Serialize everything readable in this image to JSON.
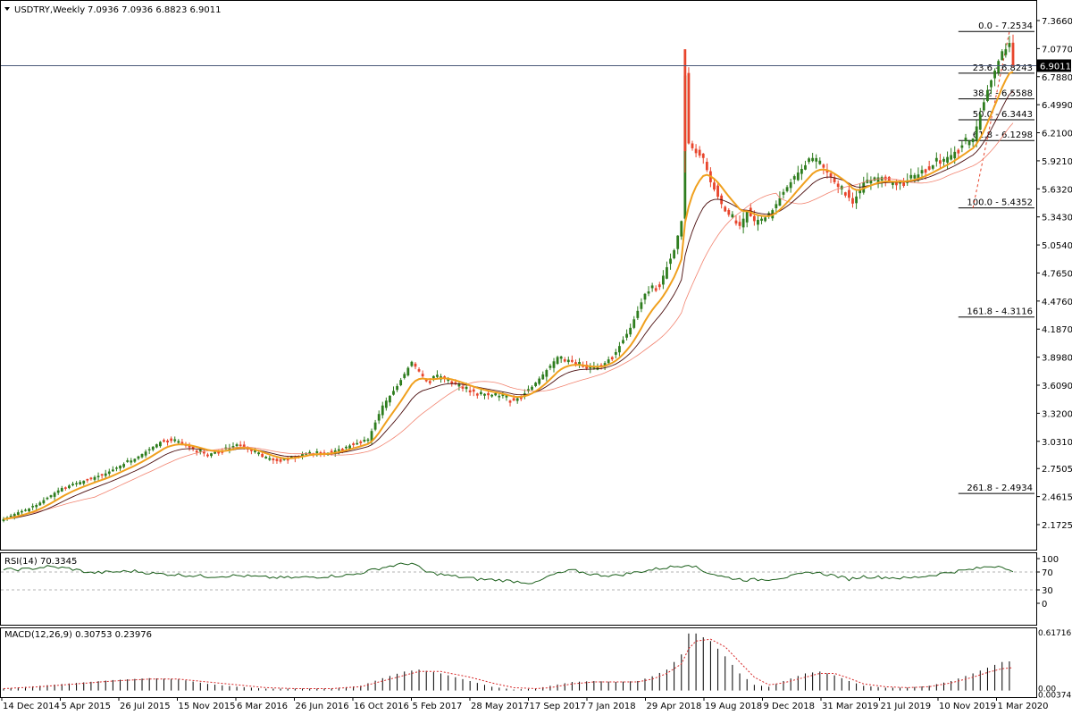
{
  "header": {
    "symbol_tf": "USDTRY,Weekly",
    "ohlc": "7.0936 7.0936 6.8823 6.9011"
  },
  "colors": {
    "bull": "#2e7d1e",
    "bear": "#e8452c",
    "ema_fast": "#f0a01e",
    "ma_dark": "#4a0d0d",
    "ma_light": "#f28470",
    "rsi": "#1a5e1a",
    "macd_signal": "#d62828",
    "grid_dash": "#9a9a9a",
    "fib_line": "#000000",
    "price_line": "#4a5a7a",
    "price_tag_bg": "#000000"
  },
  "chart_data": [
    {
      "type": "candlestick",
      "panel": "main",
      "timeframe": "Weekly",
      "x_labels": [
        "14 Dec 2014",
        "5 Apr 2015",
        "26 Jul 2015",
        "15 Nov 2015",
        "6 Mar 2016",
        "26 Jun 2016",
        "16 Oct 2016",
        "5 Feb 2017",
        "28 May 2017",
        "17 Sep 2017",
        "7 Jan 2018",
        "29 Apr 2018",
        "19 Aug 2018",
        "9 Dec 2018",
        "31 Mar 2019",
        "21 Jul 2019",
        "10 Nov 2019",
        "1 Mar 2020"
      ],
      "y_ticks": [
        "7.3660",
        "7.0770",
        "6.7880",
        "6.4990",
        "6.2100",
        "5.9210",
        "5.6320",
        "5.3430",
        "5.0540",
        "4.7650",
        "4.4760",
        "4.1870",
        "3.8980",
        "3.6090",
        "3.3200",
        "3.0310",
        "2.7505",
        "2.4615",
        "2.1725"
      ],
      "ylim": [
        2.1725,
        7.366
      ],
      "current_price": "6.9011",
      "close_path": [
        [
          0,
          2.23
        ],
        [
          4,
          2.3
        ],
        [
          8,
          2.35
        ],
        [
          12,
          2.45
        ],
        [
          16,
          2.55
        ],
        [
          20,
          2.6
        ],
        [
          24,
          2.65
        ],
        [
          28,
          2.7
        ],
        [
          32,
          2.78
        ],
        [
          36,
          2.85
        ],
        [
          40,
          2.95
        ],
        [
          44,
          3.05
        ],
        [
          48,
          3.02
        ],
        [
          52,
          2.95
        ],
        [
          56,
          2.9
        ],
        [
          60,
          2.93
        ],
        [
          64,
          3.0
        ],
        [
          68,
          2.93
        ],
        [
          72,
          2.85
        ],
        [
          76,
          2.82
        ],
        [
          80,
          2.88
        ],
        [
          84,
          2.92
        ],
        [
          88,
          2.9
        ],
        [
          92,
          2.95
        ],
        [
          96,
          3.0
        ],
        [
          100,
          3.05
        ],
        [
          104,
          3.4
        ],
        [
          108,
          3.6
        ],
        [
          112,
          3.85
        ],
        [
          116,
          3.65
        ],
        [
          120,
          3.7
        ],
        [
          124,
          3.62
        ],
        [
          128,
          3.55
        ],
        [
          132,
          3.52
        ],
        [
          136,
          3.5
        ],
        [
          140,
          3.45
        ],
        [
          144,
          3.55
        ],
        [
          148,
          3.72
        ],
        [
          152,
          3.9
        ],
        [
          156,
          3.85
        ],
        [
          160,
          3.78
        ],
        [
          164,
          3.8
        ],
        [
          168,
          3.95
        ],
        [
          172,
          4.2
        ],
        [
          176,
          4.55
        ],
        [
          180,
          4.65
        ],
        [
          184,
          5.0
        ],
        [
          186,
          5.3
        ],
        [
          187,
          6.8
        ],
        [
          188,
          6.1
        ],
        [
          190,
          6.0
        ],
        [
          192,
          5.95
        ],
        [
          194,
          5.7
        ],
        [
          196,
          5.55
        ],
        [
          198,
          5.4
        ],
        [
          200,
          5.33
        ],
        [
          202,
          5.25
        ],
        [
          204,
          5.4
        ],
        [
          206,
          5.3
        ],
        [
          210,
          5.35
        ],
        [
          214,
          5.6
        ],
        [
          218,
          5.8
        ],
        [
          222,
          5.95
        ],
        [
          225,
          5.85
        ],
        [
          228,
          5.7
        ],
        [
          231,
          5.6
        ],
        [
          233,
          5.48
        ],
        [
          236,
          5.7
        ],
        [
          240,
          5.75
        ],
        [
          244,
          5.7
        ],
        [
          248,
          5.72
        ],
        [
          252,
          5.8
        ],
        [
          256,
          5.9
        ],
        [
          260,
          5.98
        ],
        [
          263,
          6.08
        ],
        [
          266,
          6.15
        ],
        [
          268,
          6.4
        ],
        [
          270,
          6.65
        ],
        [
          272,
          6.85
        ],
        [
          274,
          7.05
        ],
        [
          276,
          7.09
        ],
        [
          277,
          6.9
        ]
      ]
    },
    {
      "type": "line",
      "panel": "rsi",
      "title": "RSI(14) 70.3345",
      "y_ticks": [
        "100",
        "70",
        "30",
        "0"
      ],
      "ylim": [
        0,
        100
      ],
      "levels": [
        70,
        30
      ],
      "path": [
        [
          0,
          75
        ],
        [
          6,
          76
        ],
        [
          12,
          82
        ],
        [
          18,
          78
        ],
        [
          24,
          68
        ],
        [
          30,
          70
        ],
        [
          36,
          72
        ],
        [
          42,
          66
        ],
        [
          48,
          64
        ],
        [
          56,
          60
        ],
        [
          64,
          62
        ],
        [
          72,
          58
        ],
        [
          80,
          57
        ],
        [
          88,
          60
        ],
        [
          96,
          64
        ],
        [
          104,
          80
        ],
        [
          108,
          86
        ],
        [
          112,
          90
        ],
        [
          116,
          70
        ],
        [
          122,
          62
        ],
        [
          130,
          54
        ],
        [
          136,
          52
        ],
        [
          142,
          48
        ],
        [
          146,
          45
        ],
        [
          150,
          62
        ],
        [
          156,
          74
        ],
        [
          162,
          64
        ],
        [
          168,
          62
        ],
        [
          174,
          70
        ],
        [
          180,
          78
        ],
        [
          186,
          84
        ],
        [
          188,
          88
        ],
        [
          192,
          72
        ],
        [
          198,
          58
        ],
        [
          204,
          52
        ],
        [
          210,
          54
        ],
        [
          216,
          60
        ],
        [
          222,
          70
        ],
        [
          228,
          62
        ],
        [
          232,
          54
        ],
        [
          236,
          60
        ],
        [
          242,
          58
        ],
        [
          248,
          56
        ],
        [
          254,
          62
        ],
        [
          260,
          70
        ],
        [
          266,
          76
        ],
        [
          270,
          82
        ],
        [
          274,
          84
        ],
        [
          277,
          70.33
        ]
      ]
    },
    {
      "type": "bar+line",
      "panel": "macd",
      "title": "MACD(12,26,9) 0.30753 0.23976",
      "y_ticks": [
        "0.61716",
        "0.00",
        "0.00374"
      ],
      "ylim": [
        -0.00374,
        0.61716
      ],
      "histogram_path": [
        [
          0,
          0.02
        ],
        [
          10,
          0.05
        ],
        [
          20,
          0.08
        ],
        [
          30,
          0.11
        ],
        [
          40,
          0.13
        ],
        [
          48,
          0.12
        ],
        [
          56,
          0.07
        ],
        [
          64,
          0.04
        ],
        [
          72,
          0.02
        ],
        [
          80,
          0.02
        ],
        [
          90,
          0.02
        ],
        [
          98,
          0.05
        ],
        [
          104,
          0.13
        ],
        [
          110,
          0.2
        ],
        [
          114,
          0.22
        ],
        [
          120,
          0.18
        ],
        [
          128,
          0.1
        ],
        [
          134,
          0.04
        ],
        [
          140,
          0.01
        ],
        [
          146,
          0.02
        ],
        [
          150,
          0.05
        ],
        [
          156,
          0.09
        ],
        [
          162,
          0.1
        ],
        [
          168,
          0.09
        ],
        [
          174,
          0.1
        ],
        [
          178,
          0.15
        ],
        [
          182,
          0.22
        ],
        [
          186,
          0.38
        ],
        [
          188,
          0.6
        ],
        [
          190,
          0.6
        ],
        [
          194,
          0.52
        ],
        [
          198,
          0.36
        ],
        [
          202,
          0.18
        ],
        [
          206,
          0.06
        ],
        [
          210,
          0.04
        ],
        [
          214,
          0.1
        ],
        [
          220,
          0.18
        ],
        [
          224,
          0.2
        ],
        [
          228,
          0.16
        ],
        [
          232,
          0.1
        ],
        [
          236,
          0.05
        ],
        [
          242,
          0.03
        ],
        [
          248,
          0.03
        ],
        [
          254,
          0.05
        ],
        [
          260,
          0.1
        ],
        [
          266,
          0.18
        ],
        [
          270,
          0.24
        ],
        [
          274,
          0.3
        ],
        [
          277,
          0.31
        ]
      ],
      "signal_path": [
        [
          0,
          0.02
        ],
        [
          10,
          0.04
        ],
        [
          20,
          0.07
        ],
        [
          30,
          0.1
        ],
        [
          40,
          0.12
        ],
        [
          48,
          0.12
        ],
        [
          56,
          0.09
        ],
        [
          64,
          0.06
        ],
        [
          72,
          0.03
        ],
        [
          80,
          0.02
        ],
        [
          90,
          0.02
        ],
        [
          98,
          0.04
        ],
        [
          104,
          0.1
        ],
        [
          110,
          0.16
        ],
        [
          114,
          0.2
        ],
        [
          120,
          0.2
        ],
        [
          128,
          0.14
        ],
        [
          134,
          0.08
        ],
        [
          140,
          0.03
        ],
        [
          146,
          0.02
        ],
        [
          150,
          0.03
        ],
        [
          156,
          0.07
        ],
        [
          162,
          0.09
        ],
        [
          168,
          0.09
        ],
        [
          174,
          0.09
        ],
        [
          178,
          0.12
        ],
        [
          182,
          0.18
        ],
        [
          186,
          0.28
        ],
        [
          188,
          0.44
        ],
        [
          190,
          0.52
        ],
        [
          194,
          0.54
        ],
        [
          198,
          0.46
        ],
        [
          202,
          0.3
        ],
        [
          206,
          0.14
        ],
        [
          210,
          0.06
        ],
        [
          214,
          0.08
        ],
        [
          220,
          0.14
        ],
        [
          224,
          0.18
        ],
        [
          228,
          0.18
        ],
        [
          232,
          0.13
        ],
        [
          236,
          0.07
        ],
        [
          242,
          0.04
        ],
        [
          248,
          0.03
        ],
        [
          254,
          0.04
        ],
        [
          260,
          0.08
        ],
        [
          266,
          0.14
        ],
        [
          270,
          0.19
        ],
        [
          274,
          0.23
        ],
        [
          277,
          0.24
        ]
      ]
    }
  ],
  "fib": {
    "swing_low": 5.4352,
    "swing_high": 7.2534,
    "labels": [
      "0.0 - 7.2534",
      "23.6 - 6.8243",
      "38.2 - 6.5588",
      "50.0 - 6.3443",
      "61.8 - 6.1298",
      "100.0 - 5.4352",
      "161.8 - 4.3116",
      "261.8 - 2.4934"
    ],
    "values": [
      7.2534,
      6.8243,
      6.5588,
      6.3443,
      6.1298,
      5.4352,
      4.3116,
      2.4934
    ]
  }
}
